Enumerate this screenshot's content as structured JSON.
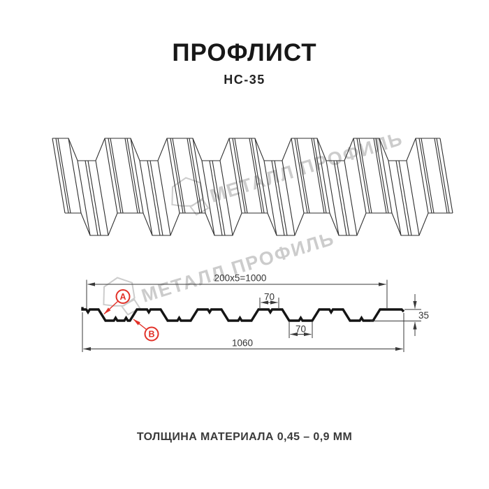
{
  "header": {
    "title": "ПРОФЛИСТ",
    "subtitle": "НС-35"
  },
  "watermark": {
    "brand": "МЕТАЛЛ ПРОФИЛЬ"
  },
  "cross_section": {
    "dim_top_pitch": "200x5=1000",
    "dim_crest_top": "70",
    "dim_trough_bottom": "70",
    "dim_overall_width": "1060",
    "dim_height": "35",
    "marker_a": "A",
    "marker_b": "B"
  },
  "footer": {
    "thickness_note": "ТОЛЩИНА МАТЕРИАЛА 0,45 – 0,9 ММ"
  },
  "colors": {
    "marker_red": "#e23128",
    "dim_line": "#3a3a3a",
    "profile_line": "#141414",
    "watermark_gray": "#cccccc",
    "background": "#ffffff"
  }
}
